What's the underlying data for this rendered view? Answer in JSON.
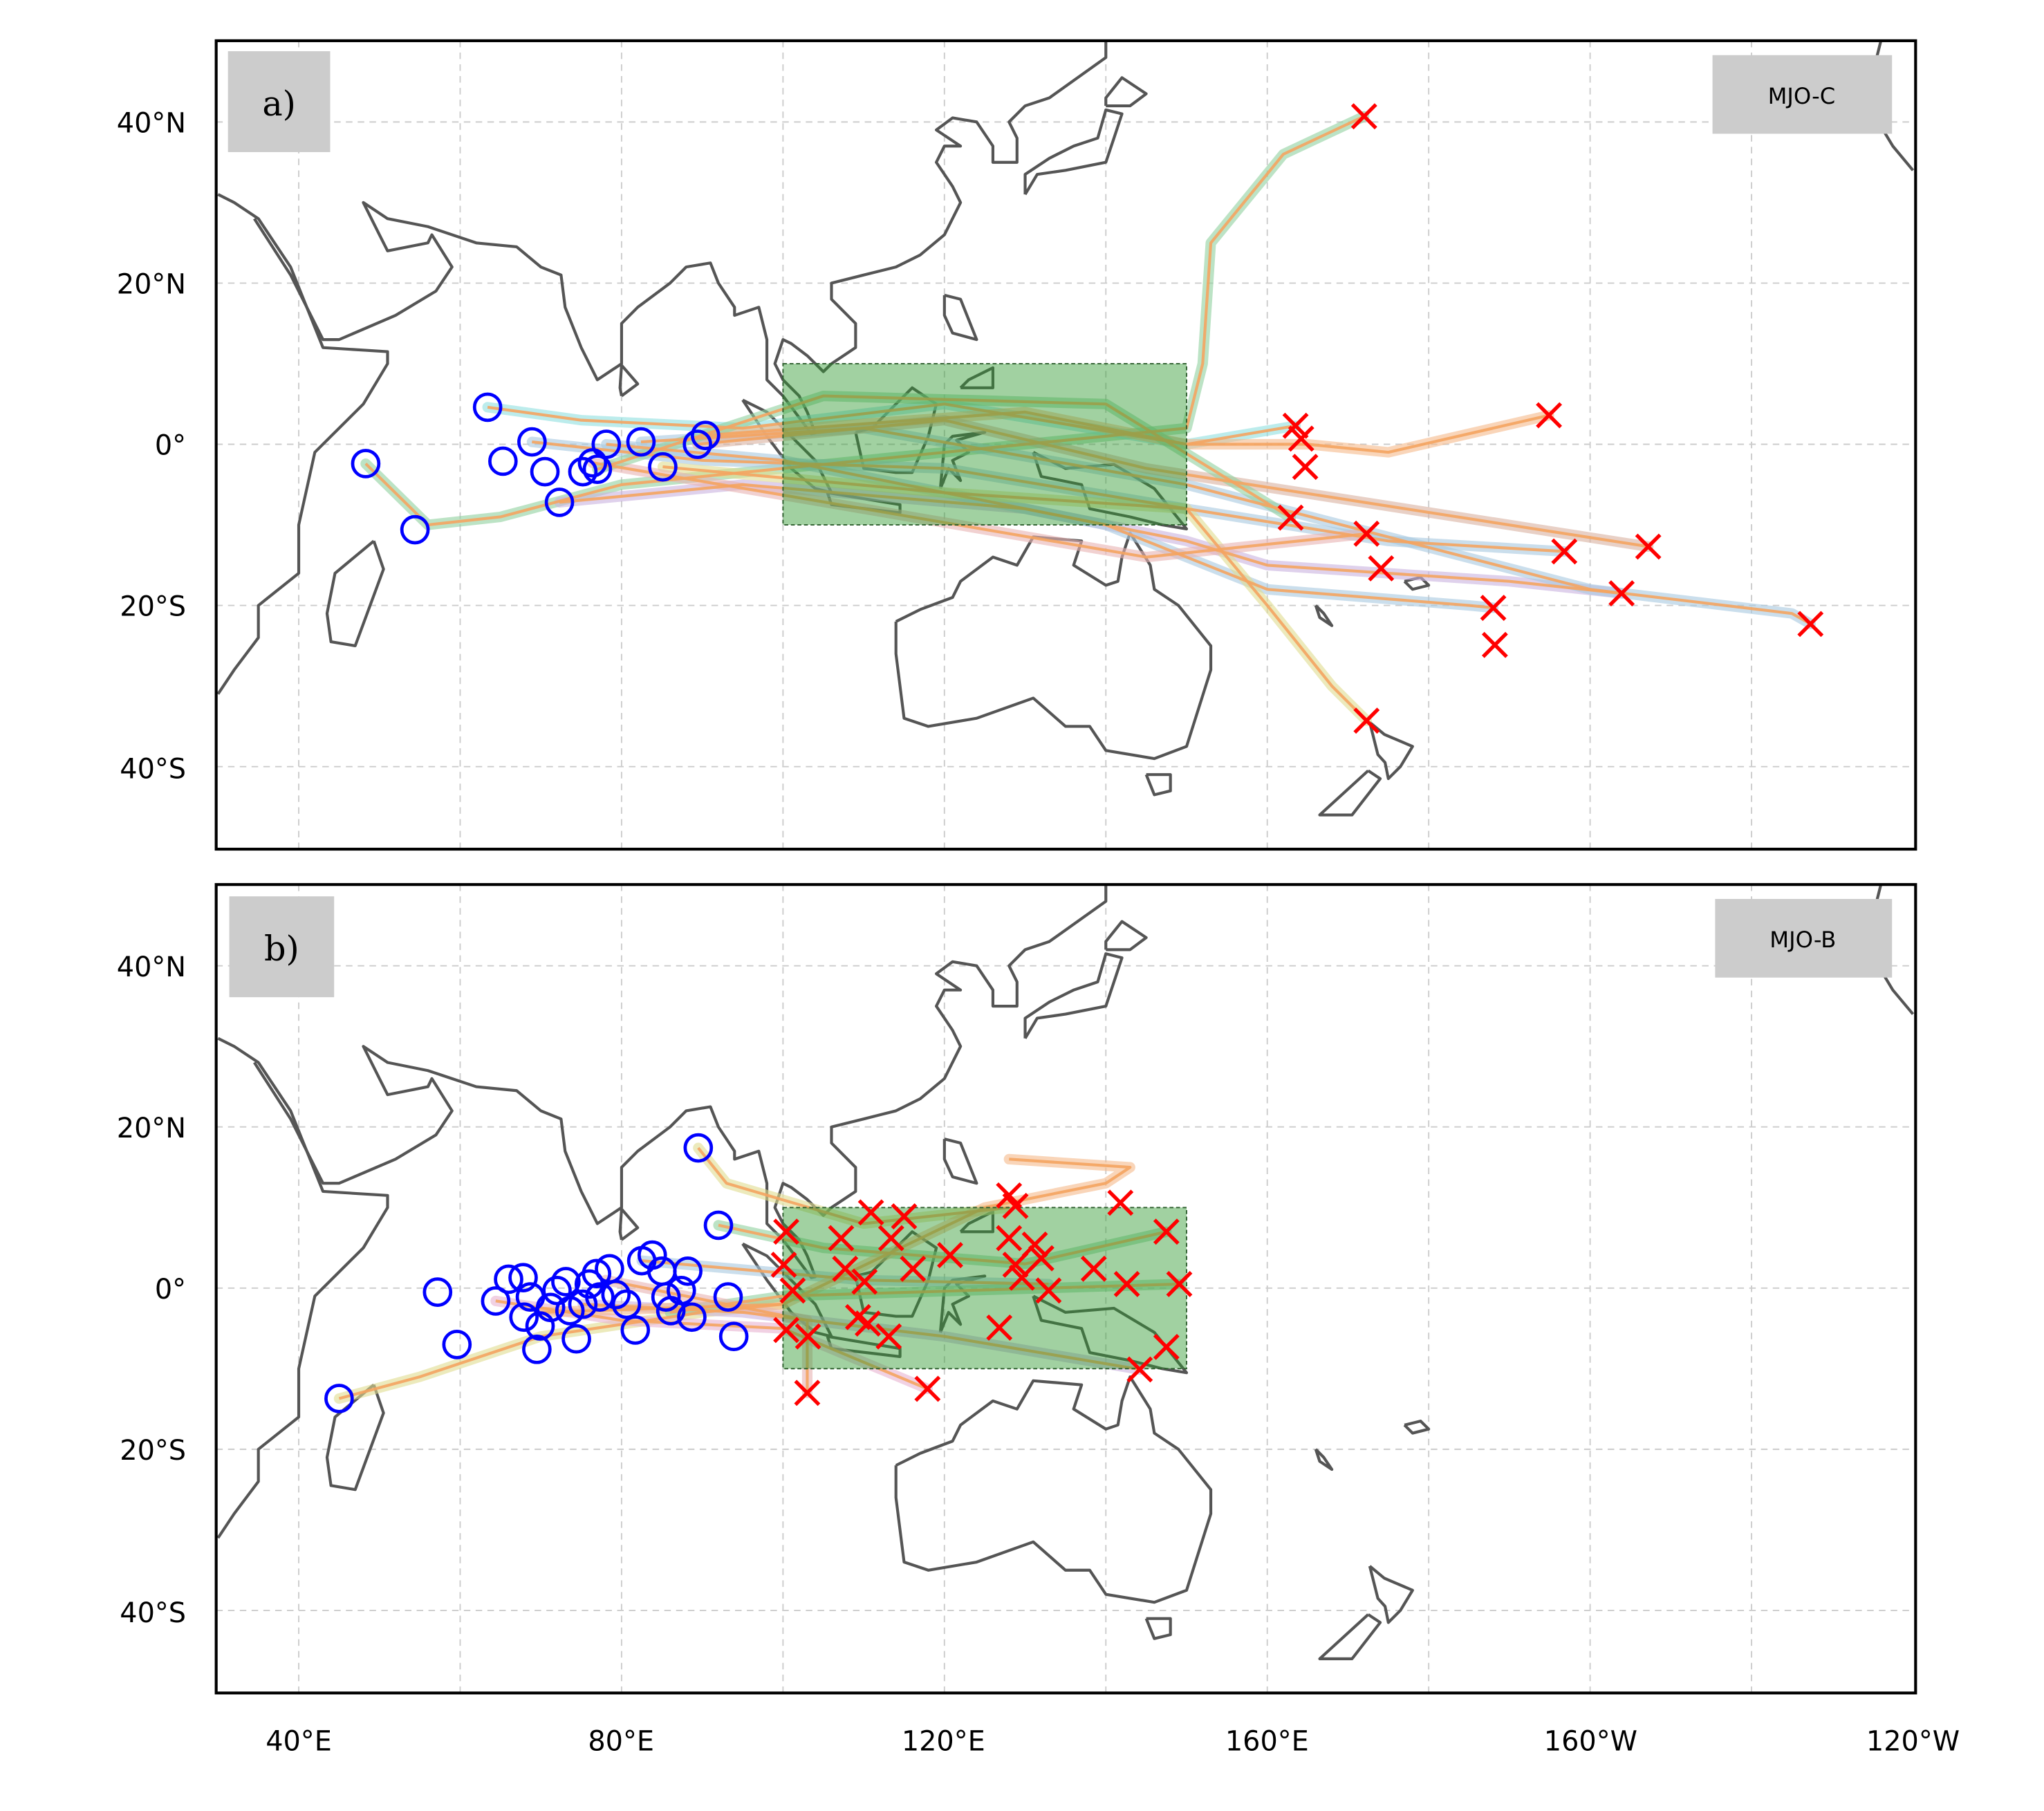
{
  "chart_data": [
    {
      "type": "map",
      "panel_label": "a)",
      "tag": "MJO-C",
      "xlim": [
        30,
        240
      ],
      "ylim": [
        -50,
        50
      ],
      "grid": true,
      "box": {
        "lon": [
          100,
          150
        ],
        "lat": [
          -10,
          10
        ],
        "color": "#2e9a2e"
      },
      "genesis": [
        [
          48.3,
          -2.4
        ],
        [
          54.4,
          -10.6
        ],
        [
          63.4,
          4.6
        ],
        [
          65.3,
          -2.1
        ],
        [
          68.9,
          0.3
        ],
        [
          70.5,
          -3.4
        ],
        [
          72.3,
          -7.2
        ],
        [
          75.2,
          -3.4
        ],
        [
          76.4,
          -2.3
        ],
        [
          77,
          -3.1
        ],
        [
          78.1,
          0
        ],
        [
          82.4,
          0.3
        ],
        [
          85.1,
          -2.8
        ],
        [
          89.4,
          0
        ],
        [
          90.4,
          1.1
        ]
      ],
      "lysis": [
        [
          172,
          40.7
        ],
        [
          163.5,
          2.3
        ],
        [
          164.2,
          0.7
        ],
        [
          164.7,
          -2.8
        ],
        [
          162.9,
          -9.1
        ],
        [
          172.3,
          -11.1
        ],
        [
          174.1,
          -15.4
        ],
        [
          194.9,
          3.6
        ],
        [
          196.8,
          -13.3
        ],
        [
          207.2,
          -12.7
        ],
        [
          203.9,
          -18.5
        ],
        [
          188,
          -20.3
        ],
        [
          188.2,
          -24.9
        ],
        [
          227.3,
          -22.3
        ],
        [
          172.3,
          -34.3
        ]
      ],
      "tracks": [
        {
          "halo": "#8fd19e",
          "pts": [
            [
              48.3,
              -2.4
            ],
            [
              56,
              -10
            ],
            [
              65,
              -9
            ],
            [
              80,
              -5
            ],
            [
              100,
              -3
            ],
            [
              130,
              0
            ],
            [
              150,
              2
            ],
            [
              152,
              10
            ],
            [
              153,
              25
            ],
            [
              162,
              36
            ],
            [
              172,
              40.7
            ]
          ]
        },
        {
          "halo": "#8fe0e0",
          "pts": [
            [
              63.4,
              4.6
            ],
            [
              75,
              3
            ],
            [
              95,
              2
            ],
            [
              120,
              5
            ],
            [
              150,
              0
            ],
            [
              163.5,
              2.3
            ]
          ]
        },
        {
          "halo": "#a6c8e0",
          "pts": [
            [
              68.9,
              0.3
            ],
            [
              90,
              -2
            ],
            [
              120,
              -3
            ],
            [
              150,
              -8
            ],
            [
              175,
              -12
            ],
            [
              196.8,
              -13.3
            ]
          ]
        },
        {
          "halo": "#c9b3e0",
          "pts": [
            [
              72.3,
              -7.2
            ],
            [
              95,
              -5
            ],
            [
              130,
              -8
            ],
            [
              150,
              -12
            ],
            [
              160,
              -15
            ],
            [
              190,
              -17
            ],
            [
              203.9,
              -18.5
            ]
          ]
        },
        {
          "halo": "#a6c8e0",
          "pts": [
            [
              78.1,
              0
            ],
            [
              100,
              -2
            ],
            [
              140,
              -10
            ],
            [
              160,
              -18
            ],
            [
              185,
              -20
            ],
            [
              188,
              -20.3
            ]
          ]
        },
        {
          "halo": "#a6c8e0",
          "pts": [
            [
              82.4,
              0.3
            ],
            [
              110,
              2
            ],
            [
              150,
              -5
            ],
            [
              200,
              -18
            ],
            [
              225,
              -21
            ],
            [
              227.3,
              -22.3
            ]
          ]
        },
        {
          "halo": "#e0dc8f",
          "pts": [
            [
              85.1,
              -2.8
            ],
            [
              120,
              -6
            ],
            [
              150,
              -8
            ],
            [
              160,
              -20
            ],
            [
              168,
              -30
            ],
            [
              172.3,
              -34.3
            ]
          ]
        },
        {
          "halo": "#f5b98a",
          "pts": [
            [
              90.4,
              1.1
            ],
            [
              130,
              4
            ],
            [
              150,
              0
            ],
            [
              165,
              0
            ],
            [
              175,
              -1
            ],
            [
              194.9,
              3.6
            ]
          ]
        },
        {
          "halo": "#e8b3b3",
          "pts": [
            [
              76.4,
              -2.3
            ],
            [
              110,
              -8
            ],
            [
              145,
              -14
            ],
            [
              172.3,
              -11.1
            ]
          ]
        },
        {
          "halo": "#d8b0a0",
          "pts": [
            [
              89.4,
              0
            ],
            [
              120,
              3
            ],
            [
              145,
              -3
            ],
            [
              207.2,
              -12.7
            ]
          ]
        },
        {
          "halo": "#8fd19e",
          "pts": [
            [
              77,
              -3.1
            ],
            [
              105,
              6
            ],
            [
              140,
              5
            ],
            [
              162.9,
              -9.1
            ]
          ]
        }
      ]
    },
    {
      "type": "map",
      "panel_label": "b)",
      "tag": "MJO-B",
      "xlim": [
        30,
        240
      ],
      "ylim": [
        -50,
        50
      ],
      "grid": true,
      "box": {
        "lon": [
          100,
          150
        ],
        "lat": [
          -10,
          10
        ],
        "color": "#2e9a2e"
      },
      "genesis": [
        [
          89.5,
          17.4
        ],
        [
          92,
          7.8
        ],
        [
          57.2,
          -0.5
        ],
        [
          59.6,
          -7
        ],
        [
          45,
          -13.7
        ],
        [
          64.4,
          -1.6
        ],
        [
          66,
          1.1
        ],
        [
          67.8,
          1.3
        ],
        [
          68.7,
          -1.1
        ],
        [
          69.9,
          -4.7
        ],
        [
          69.5,
          -7.6
        ],
        [
          71.2,
          -2.4
        ],
        [
          72,
          -0.3
        ],
        [
          73.1,
          0.8
        ],
        [
          74.4,
          -6.3
        ],
        [
          75.2,
          -2
        ],
        [
          76,
          0.5
        ],
        [
          76.9,
          1.8
        ],
        [
          77.3,
          -1.1
        ],
        [
          78.5,
          2.4
        ],
        [
          79.3,
          -0.8
        ],
        [
          80.6,
          -2
        ],
        [
          81.7,
          -5.2
        ],
        [
          82.5,
          3.4
        ],
        [
          83.8,
          4.1
        ],
        [
          85,
          2.1
        ],
        [
          85.5,
          -1.1
        ],
        [
          86.1,
          -2.8
        ],
        [
          87.4,
          -0.3
        ],
        [
          88.2,
          2.1
        ],
        [
          88.7,
          -3.6
        ],
        [
          93.2,
          -1.1
        ],
        [
          93.9,
          -6
        ],
        [
          73.6,
          -2.8
        ],
        [
          67.9,
          -3.6
        ]
      ],
      "lysis": [
        [
          100.4,
          7
        ],
        [
          100.1,
          2.9
        ],
        [
          101.2,
          -0.3
        ],
        [
          100.4,
          -5.2
        ],
        [
          103.1,
          -6
        ],
        [
          103,
          -13
        ],
        [
          107.2,
          6.2
        ],
        [
          107.7,
          2.4
        ],
        [
          110.1,
          0.8
        ],
        [
          110.9,
          9.4
        ],
        [
          113.4,
          6.2
        ],
        [
          115,
          8.9
        ],
        [
          109.3,
          -3.6
        ],
        [
          110.5,
          -4.4
        ],
        [
          113.1,
          -6
        ],
        [
          116.1,
          2.4
        ],
        [
          117.9,
          -12.5
        ],
        [
          120.7,
          4.1
        ],
        [
          126.8,
          -4.9
        ],
        [
          128,
          11.5
        ],
        [
          128.8,
          10.2
        ],
        [
          128,
          6.2
        ],
        [
          128.8,
          2.9
        ],
        [
          129.6,
          1.3
        ],
        [
          131.2,
          5.4
        ],
        [
          132,
          3.7
        ],
        [
          132.9,
          -0.3
        ],
        [
          138.5,
          2.4
        ],
        [
          141.8,
          10.6
        ],
        [
          142.6,
          0.5
        ],
        [
          147.5,
          7
        ],
        [
          149.1,
          0.5
        ],
        [
          147.5,
          -7.3
        ],
        [
          144.2,
          -10.1
        ]
      ],
      "tracks": [
        {
          "halo": "#e0dc8f",
          "pts": [
            [
              45,
              -13.7
            ],
            [
              55,
              -11
            ],
            [
              70,
              -6
            ],
            [
              90,
              -3
            ],
            [
              100,
              -2
            ]
          ]
        },
        {
          "halo": "#e0dc8f",
          "pts": [
            [
              89.5,
              17.4
            ],
            [
              93,
              13
            ],
            [
              110,
              8
            ],
            [
              128,
              10
            ]
          ]
        },
        {
          "halo": "#8fd19e",
          "pts": [
            [
              92,
              7.8
            ],
            [
              105,
              5
            ],
            [
              130,
              3
            ],
            [
              147.5,
              7
            ]
          ]
        },
        {
          "halo": "#e8b3d0",
          "pts": [
            [
              64.4,
              -1.6
            ],
            [
              80,
              -4
            ],
            [
              100,
              -5
            ],
            [
              117.9,
              -12.5
            ]
          ]
        },
        {
          "halo": "#c9b3e0",
          "pts": [
            [
              75.2,
              -2
            ],
            [
              95,
              -3
            ],
            [
              120,
              -6
            ],
            [
              144.2,
              -10.1
            ]
          ]
        },
        {
          "halo": "#a6c8e0",
          "pts": [
            [
              82.5,
              3.4
            ],
            [
              110,
              1
            ],
            [
              132.9,
              0.5
            ]
          ]
        },
        {
          "halo": "#f5b98a",
          "pts": [
            [
              70,
              -3
            ],
            [
              100,
              -2
            ],
            [
              125,
              10
            ],
            [
              140,
              13
            ],
            [
              143,
              15
            ],
            [
              128,
              16
            ]
          ]
        },
        {
          "halo": "#8fd19e",
          "pts": [
            [
              86,
              -3
            ],
            [
              100,
              -1
            ],
            [
              149.1,
              0.5
            ]
          ]
        },
        {
          "halo": "#e8b3b3",
          "pts": [
            [
              78,
              1
            ],
            [
              103,
              -4
            ],
            [
              103,
              -13
            ]
          ]
        }
      ]
    }
  ],
  "axes": {
    "y_ticks": [
      "40°N",
      "20°N",
      "0°",
      "20°S",
      "40°S"
    ],
    "x_ticks": [
      "40°E",
      "80°E",
      "120°E",
      "160°E",
      "160°W",
      "120°W"
    ]
  },
  "colors": {
    "genesis": "#0000ff",
    "lysis": "#ff0000",
    "track": "#f4a460",
    "coast": "#555555"
  }
}
